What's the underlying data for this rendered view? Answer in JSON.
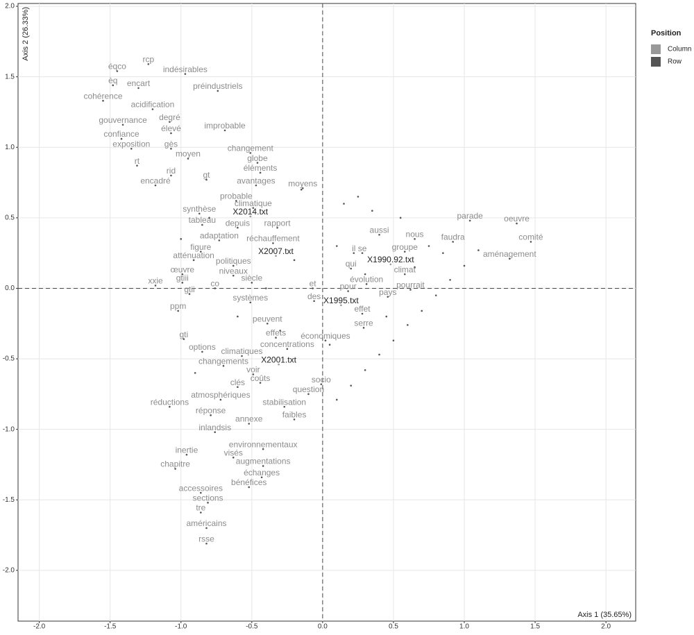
{
  "chart_data": {
    "type": "scatter",
    "xlabel": "Axis 1 (35.65%)",
    "ylabel": "Axis 2 (26.33%)",
    "xlim": [
      -2.15,
      2.21
    ],
    "ylim": [
      -2.36,
      2.02
    ],
    "xticks": [
      {
        "value": -2,
        "label": "-2.0"
      },
      -1.5,
      {
        "value": -1,
        "label": "-1.0"
      },
      -0.5,
      {
        "value": 0,
        "label": "0.0"
      },
      0.5,
      {
        "value": 1,
        "label": "1.0"
      },
      1.5,
      {
        "value": 2,
        "label": "2.0"
      }
    ],
    "yticks": [
      {
        "value": -2,
        "label": "-2.0"
      },
      -1.5,
      {
        "value": -1,
        "label": "-1.0"
      },
      -0.5,
      {
        "value": 0,
        "label": "0.0"
      },
      0.5,
      {
        "value": 1,
        "label": "1.0"
      },
      1.5,
      {
        "value": 2,
        "label": "2.0"
      }
    ],
    "grid": true,
    "legend_title": "Position",
    "legend_position": "right",
    "series": [
      {
        "name": "Column",
        "color": "#999999",
        "label_color": "#222222",
        "labels": [
          "X2014.txt",
          "X2007.txt",
          "X1990.92.txt",
          "X1995.txt",
          "X2001.txt"
        ],
        "x": [
          -0.51,
          -0.33,
          0.48,
          0.13,
          -0.31
        ],
        "y": [
          0.51,
          0.23,
          0.17,
          -0.12,
          -0.54
        ]
      },
      {
        "name": "Row",
        "color": "#555555",
        "label_color": "#8c8c8c",
        "labels": [
          "rcp",
          "éqco",
          "indésirables",
          "encart",
          "èq",
          "préindustriels",
          "cohérence",
          "acidification",
          "degré",
          "gouvernance",
          "élevé",
          "improbable",
          "confiance",
          "exposition",
          "gès",
          "changement",
          "moyen",
          "globe",
          "rt",
          "éléments",
          "rid",
          "gt",
          "encadré",
          "avantages",
          "moyens",
          "probable",
          "climatique",
          "synthèse",
          "tableau",
          "depuis",
          "rapport",
          "parade",
          "oeuvre",
          "aussi",
          "nous",
          "adaptation",
          "comité",
          "faudra",
          "réchauffement",
          "il",
          "se",
          "groupe",
          "figure",
          "aménagement",
          "atténuation",
          "politiques",
          "qui",
          "climat",
          "pourrait",
          "œuvre",
          "niveaux",
          "évolution",
          "siècle",
          "xxie",
          "gtiii",
          "co",
          "et",
          "pour",
          "gtii",
          "pays",
          "des",
          "systèmes",
          "ppm",
          "effet",
          "peuvent",
          "serre",
          "effets",
          "économiques",
          "gti",
          "concentrations",
          "options",
          "climatiques",
          "changements",
          "voir",
          "socio",
          "clés",
          "coûts",
          "question",
          "atmosphériques",
          "réductions",
          "stabilisation",
          "réponse",
          "faibles",
          "annexe",
          "inlandsis",
          "environnementaux",
          "inertie",
          "visés",
          "augmentations",
          "chapitre",
          "échanges",
          "bénéfices",
          "accessoires",
          "sections",
          "tre",
          "américains",
          "rsse",
          null,
          null,
          null,
          null,
          null,
          null,
          null,
          null,
          null,
          null,
          null,
          null,
          null,
          null,
          null,
          null,
          null,
          null,
          null,
          null,
          null,
          null,
          null,
          null,
          null,
          null,
          null,
          null,
          null,
          null
        ],
        "x": [
          -1.23,
          -1.45,
          -0.97,
          -1.3,
          -1.48,
          -0.74,
          -1.55,
          -1.2,
          -1.08,
          -1.41,
          -1.07,
          -0.69,
          -1.42,
          -1.35,
          -1.07,
          -0.51,
          -0.95,
          -0.46,
          -1.31,
          -0.44,
          -1.07,
          -0.82,
          -1.18,
          -0.47,
          -0.14,
          -0.61,
          -0.49,
          -0.87,
          -0.85,
          -0.6,
          -0.32,
          1.04,
          1.37,
          0.4,
          0.65,
          -0.73,
          1.47,
          0.92,
          -0.35,
          0.22,
          0.28,
          0.58,
          -0.86,
          1.32,
          -0.91,
          -0.63,
          0.2,
          0.58,
          0.62,
          -0.99,
          -0.63,
          0.31,
          -0.5,
          -1.18,
          -0.99,
          -0.76,
          -0.07,
          0.18,
          -0.94,
          0.46,
          -0.06,
          -0.51,
          -1.02,
          0.28,
          -0.39,
          0.29,
          -0.33,
          0.02,
          -0.98,
          -0.25,
          -0.85,
          -0.57,
          -0.7,
          -0.49,
          -0.01,
          -0.6,
          -0.44,
          -0.1,
          -0.72,
          -1.08,
          -0.27,
          -0.79,
          -0.2,
          -0.52,
          -0.76,
          -0.42,
          -0.96,
          -0.63,
          -0.42,
          -1.04,
          -0.43,
          -0.52,
          -0.86,
          -0.81,
          -0.86,
          -0.82,
          -0.82,
          0.1,
          0.2,
          0.3,
          0.4,
          0.5,
          0.6,
          0.7,
          0.8,
          0.9,
          1.0,
          0.15,
          0.35,
          0.55,
          0.75,
          0.1,
          0.3,
          0.45,
          -0.2,
          -0.3,
          0.05,
          -0.15,
          0.25,
          -0.6,
          -0.8,
          -1.0,
          -0.9,
          -0.4,
          0.65,
          0.85,
          1.1
        ],
        "y": [
          1.59,
          1.54,
          1.52,
          1.42,
          1.44,
          1.4,
          1.33,
          1.27,
          1.18,
          1.16,
          1.1,
          1.12,
          1.06,
          0.99,
          0.99,
          0.96,
          0.92,
          0.89,
          0.87,
          0.82,
          0.8,
          0.77,
          0.73,
          0.73,
          0.71,
          0.62,
          0.57,
          0.53,
          0.45,
          0.43,
          0.43,
          0.48,
          0.46,
          0.38,
          0.35,
          0.34,
          0.33,
          0.33,
          0.32,
          0.25,
          0.25,
          0.26,
          0.26,
          0.21,
          0.2,
          0.16,
          0.14,
          0.1,
          -0.01,
          0.1,
          0.09,
          0.03,
          0.04,
          0.02,
          0.04,
          0.0,
          0.0,
          -0.02,
          -0.04,
          -0.06,
          -0.09,
          -0.1,
          -0.16,
          -0.18,
          -0.25,
          -0.28,
          -0.35,
          -0.37,
          -0.36,
          -0.43,
          -0.45,
          -0.48,
          -0.55,
          -0.61,
          -0.68,
          -0.7,
          -0.67,
          -0.75,
          -0.79,
          -0.84,
          -0.84,
          -0.9,
          -0.93,
          -0.96,
          -1.02,
          -1.14,
          -1.18,
          -1.2,
          -1.26,
          -1.28,
          -1.34,
          -1.41,
          -1.45,
          -1.52,
          -1.59,
          -1.7,
          -1.81,
          -0.79,
          -0.69,
          -0.58,
          -0.47,
          -0.37,
          -0.26,
          -0.16,
          -0.05,
          0.06,
          0.16,
          0.6,
          0.55,
          0.5,
          0.3,
          0.3,
          0.1,
          -0.2,
          0.2,
          -0.3,
          -0.4,
          0.7,
          0.65,
          -0.2,
          0.5,
          0.35,
          -0.6,
          0.0,
          0.15,
          0.25,
          0.27
        ]
      }
    ]
  }
}
